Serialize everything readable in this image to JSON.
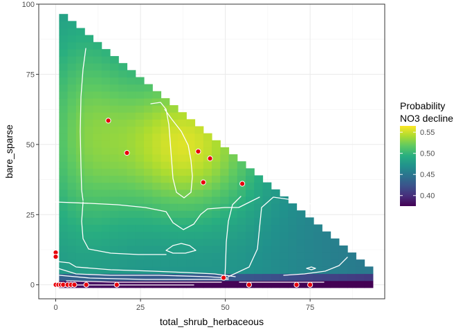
{
  "chart_data": {
    "type": "heatmap",
    "xlabel": "total_shrub_herbaceous",
    "ylabel": "bare_sparse",
    "xlim": [
      -5,
      97
    ],
    "ylim": [
      -5,
      100
    ],
    "x_ticks": [
      "0",
      "25",
      "50",
      "75"
    ],
    "y_ticks": [
      "0",
      "25",
      "50",
      "75",
      "100"
    ],
    "grid": true,
    "legend": {
      "title_lines": [
        "Probability",
        "NO3 decline"
      ],
      "position": "right",
      "range": [
        0.375,
        0.565
      ],
      "ticks": [
        "0.40",
        "0.45",
        "0.50",
        "0.55"
      ],
      "colormap": "viridis"
    },
    "colors": {
      "point_fill": "#e8000b",
      "point_stroke": "#ffffff",
      "contour": "#ffffff",
      "grid": "#ebebeb",
      "panel_border": "#333333"
    },
    "points": [
      {
        "x": 15.5,
        "y": 58.5
      },
      {
        "x": 21,
        "y": 47
      },
      {
        "x": 42,
        "y": 47.5
      },
      {
        "x": 45.5,
        "y": 45
      },
      {
        "x": 43.5,
        "y": 36.5
      },
      {
        "x": 55,
        "y": 36
      },
      {
        "x": 0,
        "y": 11.5
      },
      {
        "x": 0,
        "y": 10
      },
      {
        "x": 49.5,
        "y": 2.5
      },
      {
        "x": 0,
        "y": 0
      },
      {
        "x": 0.8,
        "y": 0
      },
      {
        "x": 1.5,
        "y": 0
      },
      {
        "x": 2.2,
        "y": 0
      },
      {
        "x": 3.5,
        "y": 0
      },
      {
        "x": 4.5,
        "y": 0
      },
      {
        "x": 5.5,
        "y": 0
      },
      {
        "x": 9,
        "y": 0
      },
      {
        "x": 18,
        "y": 0
      },
      {
        "x": 57,
        "y": 0
      },
      {
        "x": 71,
        "y": 0
      },
      {
        "x": 75,
        "y": 0
      }
    ]
  }
}
